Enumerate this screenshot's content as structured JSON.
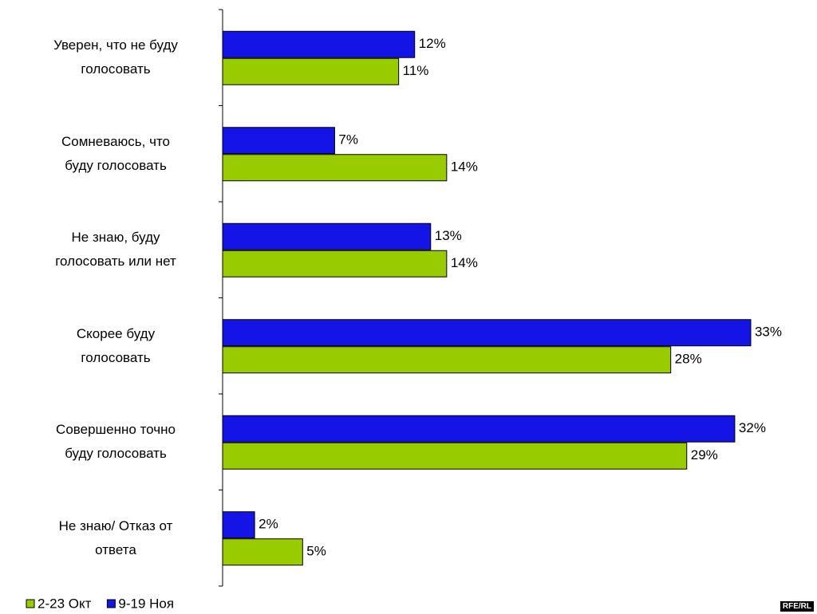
{
  "chart_data": {
    "type": "hbar",
    "categories": [
      "Уверен, что не буду\nголосовать",
      "Сомневаюсь, что\nбуду голосовать",
      "Не знаю, буду\nголосовать или нет",
      "Скорее буду\nголосовать",
      "Совершенно точно\nбуду голосовать",
      "Не знаю/ Отказ от\nответа"
    ],
    "series": [
      {
        "name": "9-19 Ноя",
        "color": "#1414e6",
        "values": [
          12,
          7,
          13,
          33,
          32,
          2
        ],
        "value_labels": [
          "12%",
          "7%",
          "13%",
          "33%",
          "32%",
          "2%"
        ]
      },
      {
        "name": "2-23 Окт",
        "color": "#99cc00",
        "values": [
          11,
          14,
          14,
          28,
          29,
          5
        ],
        "value_labels": [
          "11%",
          "14%",
          "14%",
          "28%",
          "29%",
          "5%"
        ]
      }
    ],
    "legend_order": [
      "2-23 Окт",
      "9-19 Ноя"
    ],
    "source": "RFE/RL"
  }
}
